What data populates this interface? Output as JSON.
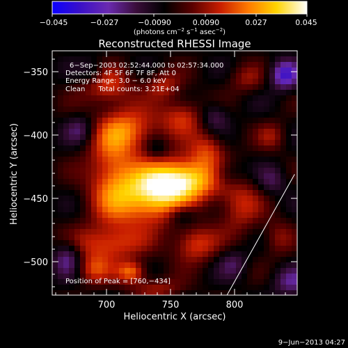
{
  "colorbar": {
    "ticks": [
      "−0.045",
      "−0.027",
      "−0.0090",
      "0.0090",
      "0.027",
      "0.045"
    ],
    "unit_main": "(photons cm",
    "unit_sup1": "−2",
    "unit_mid": " s",
    "unit_sup2": "−1",
    "unit_after": " asec",
    "unit_sup3": "−2",
    "unit_end": ")",
    "gradient_stops": [
      "#0b00ff",
      "#3a10c8",
      "#6a2ab0",
      "#3a0d3a",
      "#000000",
      "#5a0000",
      "#c81e00",
      "#ff7a00",
      "#ffd400",
      "#ffffff"
    ]
  },
  "plot": {
    "title": "Reconstructed RHESSI Image",
    "xlabel": "Heliocentric X (arcsec)",
    "ylabel": "Heliocentric Y (arcsec)",
    "xticks": [
      "700",
      "750",
      "800"
    ],
    "yticks": [
      "−350",
      "−400",
      "−450",
      "−500"
    ]
  },
  "info": {
    "line1": "6−Sep−2003 02:52:44.000 to 02:57:34.000",
    "line2": "Detectors: 4F 5F 6F 7F 8F, Att 0",
    "line3": "Energy Range: 3.0 − 6.0 keV",
    "line4": "Clean      Total counts: 3.21E+04"
  },
  "peak": {
    "label": "Position of Peak = [760,−434]"
  },
  "footer": {
    "timestamp": "9−Jun−2013 04:27"
  },
  "image_map": {
    "sources": [
      {
        "x": 760,
        "y": -434,
        "amp": 0.045,
        "sx": 22,
        "sy": 12
      },
      {
        "x": 735,
        "y": -450,
        "amp": 0.034,
        "sx": 18,
        "sy": 14
      },
      {
        "x": 705,
        "y": -430,
        "amp": 0.026,
        "sx": 14,
        "sy": 30
      },
      {
        "x": 720,
        "y": -395,
        "amp": 0.022,
        "sx": 16,
        "sy": 12
      },
      {
        "x": 700,
        "y": -360,
        "amp": 0.02,
        "sx": 14,
        "sy": 10
      },
      {
        "x": 760,
        "y": -385,
        "amp": 0.02,
        "sx": 12,
        "sy": 10
      },
      {
        "x": 780,
        "y": -410,
        "amp": 0.018,
        "sx": 10,
        "sy": 10
      },
      {
        "x": 805,
        "y": -455,
        "amp": 0.017,
        "sx": 12,
        "sy": 16
      },
      {
        "x": 700,
        "y": -485,
        "amp": 0.02,
        "sx": 22,
        "sy": 10
      },
      {
        "x": 720,
        "y": -507,
        "amp": 0.026,
        "sx": 8,
        "sy": 6
      },
      {
        "x": 770,
        "y": -485,
        "amp": 0.022,
        "sx": 12,
        "sy": 10
      },
      {
        "x": 690,
        "y": -505,
        "amp": 0.018,
        "sx": 10,
        "sy": 8
      },
      {
        "x": 745,
        "y": -360,
        "amp": 0.016,
        "sx": 10,
        "sy": 8
      },
      {
        "x": 830,
        "y": -400,
        "amp": 0.012,
        "sx": 8,
        "sy": 8
      },
      {
        "x": 810,
        "y": -355,
        "amp": 0.012,
        "sx": 10,
        "sy": 8
      },
      {
        "x": 835,
        "y": -480,
        "amp": 0.012,
        "sx": 8,
        "sy": 10
      },
      {
        "x": 740,
        "y": -520,
        "amp": 0.014,
        "sx": 14,
        "sy": 6
      }
    ],
    "negatives": [
      {
        "x": 840,
        "y": -352,
        "amp": -0.028,
        "sx": 8,
        "sy": 8
      },
      {
        "x": 670,
        "y": -495,
        "amp": -0.02,
        "sx": 8,
        "sy": 10
      },
      {
        "x": 795,
        "y": -430,
        "amp": -0.016,
        "sx": 10,
        "sy": 8
      },
      {
        "x": 785,
        "y": -385,
        "amp": -0.014,
        "sx": 8,
        "sy": 8
      },
      {
        "x": 760,
        "y": -462,
        "amp": -0.014,
        "sx": 8,
        "sy": 6
      },
      {
        "x": 845,
        "y": -515,
        "amp": -0.016,
        "sx": 10,
        "sy": 8
      },
      {
        "x": 680,
        "y": -395,
        "amp": -0.014,
        "sx": 8,
        "sy": 8
      },
      {
        "x": 830,
        "y": -435,
        "amp": -0.012,
        "sx": 8,
        "sy": 8
      },
      {
        "x": 690,
        "y": -350,
        "amp": -0.012,
        "sx": 8,
        "sy": 8
      },
      {
        "x": 740,
        "y": -410,
        "amp": -0.01,
        "sx": 6,
        "sy": 6
      },
      {
        "x": 800,
        "y": -500,
        "amp": -0.012,
        "sx": 8,
        "sy": 8
      }
    ],
    "limb_line": [
      [
        795,
        -525
      ],
      [
        848,
        -430
      ]
    ]
  }
}
